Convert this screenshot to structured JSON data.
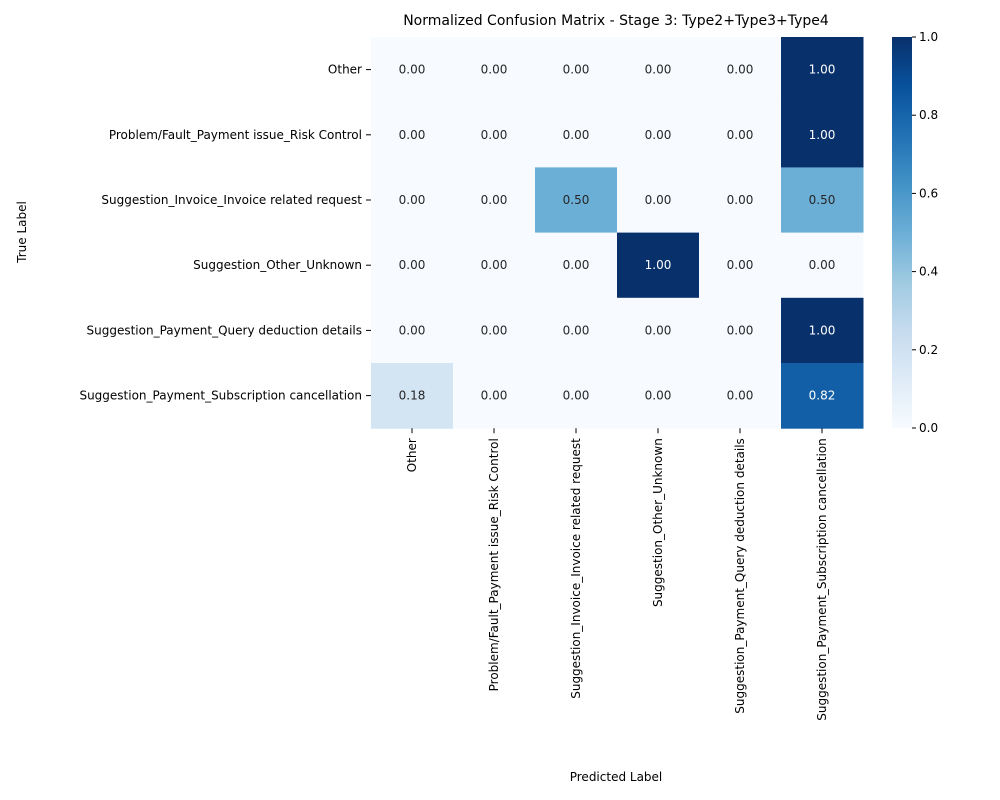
{
  "chart_data": {
    "type": "heatmap",
    "title": "Normalized Confusion Matrix - Stage 3: Type2+Type3+Type4",
    "xlabel": "Predicted Label",
    "ylabel": "True Label",
    "categories": [
      "Other",
      "Problem/Fault_Payment issue_Risk Control",
      "Suggestion_Invoice_Invoice related request",
      "Suggestion_Other_Unknown",
      "Suggestion_Payment_Query deduction details",
      "Suggestion_Payment_Subscription cancellation"
    ],
    "values": [
      [
        0.0,
        0.0,
        0.0,
        0.0,
        0.0,
        1.0
      ],
      [
        0.0,
        0.0,
        0.0,
        0.0,
        0.0,
        1.0
      ],
      [
        0.0,
        0.0,
        0.5,
        0.0,
        0.0,
        0.5
      ],
      [
        0.0,
        0.0,
        0.0,
        1.0,
        0.0,
        0.0
      ],
      [
        0.0,
        0.0,
        0.0,
        0.0,
        0.0,
        1.0
      ],
      [
        0.18,
        0.0,
        0.0,
        0.0,
        0.0,
        0.82
      ]
    ],
    "value_format": "0.00",
    "colormap": "Blues",
    "colorbar": {
      "range": [
        0,
        1
      ],
      "ticks": [
        "0.0",
        "0.2",
        "0.4",
        "0.6",
        "0.8",
        "1.0"
      ]
    }
  }
}
